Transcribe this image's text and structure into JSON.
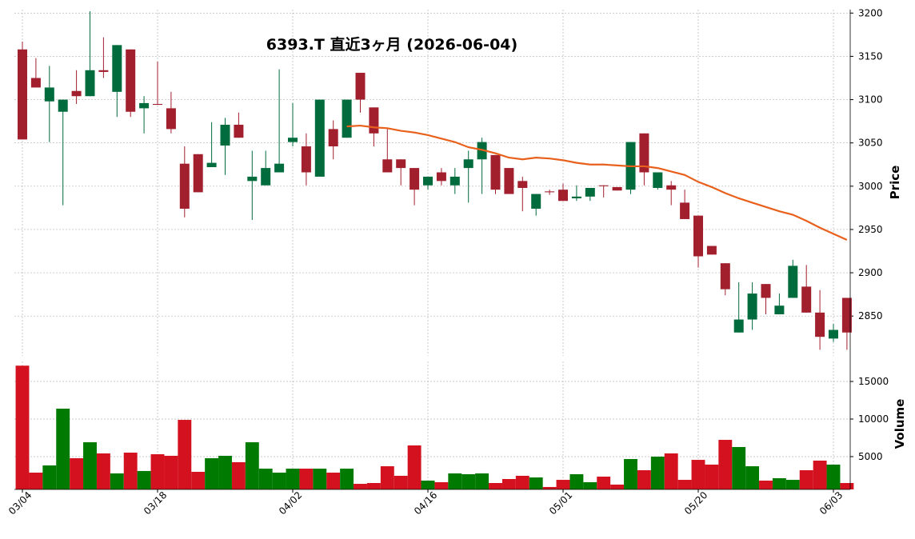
{
  "chart_data": {
    "type": "candlestick",
    "title": "6393.T  直近3ヶ月  (2026-06-04)",
    "y_label": "Price",
    "volume_label": "Volume",
    "categories": [
      "03/04",
      null,
      null,
      null,
      null,
      null,
      null,
      null,
      null,
      null,
      "03/18",
      null,
      null,
      null,
      null,
      null,
      null,
      null,
      null,
      null,
      "04/02",
      null,
      null,
      null,
      null,
      null,
      null,
      null,
      null,
      null,
      "04/16",
      null,
      null,
      null,
      null,
      null,
      null,
      null,
      null,
      null,
      "05/01",
      null,
      null,
      null,
      null,
      null,
      null,
      null,
      null,
      null,
      "05/20",
      null,
      null,
      null,
      null,
      null,
      null,
      null,
      null,
      null,
      "06/03",
      null
    ],
    "open": [
      3158,
      3125,
      3098,
      3086,
      3110,
      3104,
      3134,
      3109,
      3158,
      3090,
      3095,
      3090,
      3026,
      3037,
      3022,
      3047,
      3071,
      3006,
      3001,
      3016,
      3051,
      3046,
      3011,
      3066,
      3056,
      3131,
      3091,
      3031,
      3031,
      3021,
      3001,
      3016,
      3001,
      3021,
      3031,
      3036,
      3021,
      3006,
      2974,
      2994,
      2996,
      2986,
      2988,
      3001,
      2999,
      2996,
      3061,
      2998,
      3001,
      2981,
      2966,
      2931,
      2911,
      2831,
      2846,
      2887,
      2852,
      2871,
      2884,
      2854,
      2824,
      2871
    ],
    "high": [
      3167,
      3148,
      3139,
      3100,
      3134,
      3202,
      3172,
      3163,
      3158,
      3104,
      3144,
      3109,
      3046,
      3037,
      3074,
      3079,
      3085,
      3041,
      3041,
      3135,
      3096,
      3061,
      3100,
      3076,
      3100,
      3131,
      3091,
      3066,
      3031,
      3021,
      3011,
      3021,
      3021,
      3041,
      3056,
      3036,
      3021,
      3011,
      2991,
      2996,
      3003,
      3001,
      2998,
      3001,
      2999,
      3051,
      3061,
      3016,
      3006,
      2996,
      2966,
      2931,
      2911,
      2889,
      2889,
      2887,
      2876,
      2915,
      2909,
      2880,
      2841,
      2871
    ],
    "low": [
      3054,
      3114,
      3051,
      2978,
      3095,
      3104,
      3125,
      3080,
      3080,
      3061,
      3094,
      3061,
      2964,
      2993,
      3022,
      3013,
      3056,
      2961,
      3001,
      3016,
      3046,
      3001,
      3011,
      3031,
      3056,
      3085,
      3046,
      3016,
      3001,
      2978,
      2996,
      3001,
      2991,
      2981,
      2991,
      2991,
      2991,
      2971,
      2966,
      2990,
      2983,
      2983,
      2983,
      2987,
      2995,
      2991,
      3001,
      2996,
      2978,
      2962,
      2906,
      2921,
      2874,
      2831,
      2834,
      2852,
      2852,
      2871,
      2854,
      2811,
      2820,
      2811
    ],
    "close": [
      3054,
      3114,
      3114,
      3100,
      3104,
      3134,
      3132,
      3163,
      3086,
      3096,
      3094,
      3066,
      2974,
      2993,
      3027,
      3071,
      3056,
      3011,
      3021,
      3026,
      3056,
      3016,
      3100,
      3046,
      3100,
      3100,
      3061,
      3016,
      3021,
      2996,
      3011,
      3006,
      3011,
      3031,
      3051,
      2996,
      2991,
      2998,
      2991,
      2993,
      2983,
      2988,
      2998,
      3000,
      2995,
      3051,
      3016,
      3016,
      2996,
      2962,
      2919,
      2921,
      2881,
      2846,
      2876,
      2871,
      2862,
      2908,
      2854,
      2826,
      2834,
      2831
    ],
    "volume": [
      17100,
      2870,
      3830,
      11380,
      4790,
      6910,
      5430,
      2770,
      5530,
      3090,
      5320,
      5110,
      9890,
      2980,
      4790,
      5110,
      4260,
      6910,
      3400,
      2870,
      3400,
      3400,
      3400,
      2870,
      3400,
      1380,
      1490,
      3720,
      2450,
      6490,
      1810,
      1600,
      2770,
      2660,
      2770,
      1490,
      2020,
      2450,
      2230,
      960,
      1910,
      2660,
      1600,
      2340,
      1280,
      4680,
      3190,
      5000,
      5430,
      1910,
      4570,
      3940,
      7230,
      6280,
      3720,
      1810,
      2130,
      1910,
      3190,
      4470,
      3940,
      1490
    ],
    "moving_average": [
      null,
      null,
      null,
      null,
      null,
      null,
      null,
      null,
      null,
      null,
      null,
      null,
      null,
      null,
      null,
      null,
      null,
      null,
      null,
      null,
      null,
      null,
      null,
      null,
      3069,
      3070,
      3068,
      3067,
      3064,
      3062,
      3059,
      3055,
      3051,
      3045,
      3042,
      3038,
      3033,
      3031,
      3033,
      3032,
      3030,
      3027,
      3025,
      3025,
      3024,
      3023,
      3023,
      3021,
      3017,
      3013,
      3005,
      2999,
      2992,
      2986,
      2981,
      2976,
      2971,
      2967,
      2960,
      2952,
      2945,
      2938
    ],
    "ylim": [
      2804,
      3204
    ],
    "yticks": [
      2850,
      2900,
      2950,
      3000,
      3050,
      3100,
      3150,
      3200
    ],
    "volume_ylim": [
      638,
      17659
    ],
    "volume_ticks": [
      5000,
      10000,
      15000
    ],
    "up_color": "#006b3c",
    "down_color": "#a21f2e",
    "volume_up_color": "#007a00",
    "volume_down_color": "#d4111e",
    "ma_color": "#e8601c",
    "grid": true
  }
}
